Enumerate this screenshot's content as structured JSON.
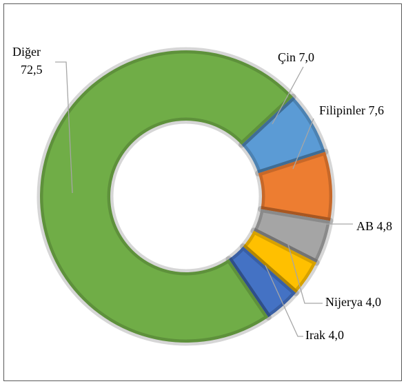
{
  "chart_data": {
    "type": "donut",
    "categories": [
      "Çin",
      "Filipinler",
      "AB",
      "Nijerya",
      "Irak",
      "Diğer"
    ],
    "values": [
      7.0,
      7.6,
      4.8,
      4.0,
      4.0,
      72.5
    ],
    "value_labels": [
      "7,0",
      "7,6",
      "4,8",
      "4,0",
      "4,0",
      "72,5"
    ],
    "colors": [
      "#5b9bd5",
      "#ed7d31",
      "#a5a5a5",
      "#ffc000",
      "#4472c4",
      "#70ad47"
    ]
  }
}
